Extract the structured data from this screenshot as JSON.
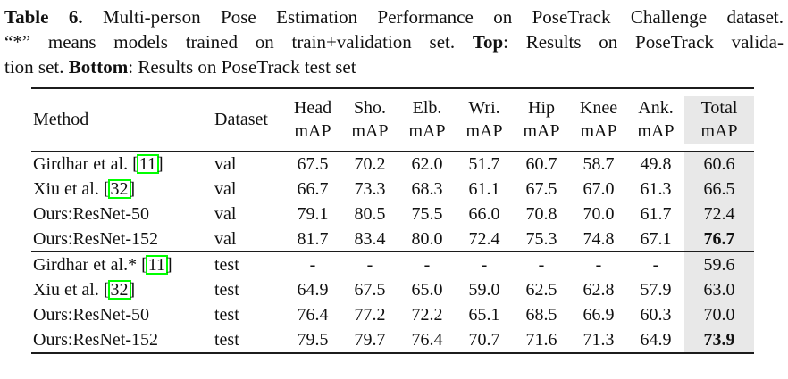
{
  "caption": {
    "line1": {
      "bold": "Table 6.",
      "rest": " Multi-person Pose Estimation Performance on PoseTrack Challenge dataset."
    },
    "line2": {
      "pre": "“*” means models trained on train+validation set. ",
      "bold": "Top",
      "rest": ": Results on PoseTrack valida-"
    },
    "line3": {
      "pre": "tion set. ",
      "bold": "Bottom",
      "rest": ": Results on PoseTrack test set"
    }
  },
  "table": {
    "header": {
      "method": "Method",
      "dataset": "Dataset",
      "metrics": [
        {
          "line1": "Head",
          "line2": "mAP",
          "shaded": false
        },
        {
          "line1": "Sho.",
          "line2": "mAP",
          "shaded": false
        },
        {
          "line1": "Elb.",
          "line2": "mAP",
          "shaded": false
        },
        {
          "line1": "Wri.",
          "line2": "mAP",
          "shaded": false
        },
        {
          "line1": "Hip",
          "line2": "mAP",
          "shaded": false
        },
        {
          "line1": "Knee",
          "line2": "mAP",
          "shaded": false
        },
        {
          "line1": "Ank.",
          "line2": "mAP",
          "shaded": false
        },
        {
          "line1": "Total",
          "line2": "mAP",
          "shaded": true
        }
      ]
    },
    "sections": [
      {
        "name": "validation",
        "rows": [
          {
            "method": "Girdhar et al.",
            "citation": "11",
            "dataset": "val",
            "values": [
              "67.5",
              "70.2",
              "62.0",
              "51.7",
              "60.7",
              "58.7",
              "49.8"
            ],
            "total": "60.6",
            "total_bold": false
          },
          {
            "method": "Xiu et al.",
            "citation": "32",
            "dataset": "val",
            "values": [
              "66.7",
              "73.3",
              "68.3",
              "61.1",
              "67.5",
              "67.0",
              "61.3"
            ],
            "total": "66.5",
            "total_bold": false
          },
          {
            "method": "Ours:ResNet-50",
            "citation": null,
            "dataset": "val",
            "values": [
              "79.1",
              "80.5",
              "75.5",
              "66.0",
              "70.8",
              "70.0",
              "61.7"
            ],
            "total": "72.4",
            "total_bold": false
          },
          {
            "method": "Ours:ResNet-152",
            "citation": null,
            "dataset": "val",
            "values": [
              "81.7",
              "83.4",
              "80.0",
              "72.4",
              "75.3",
              "74.8",
              "67.1"
            ],
            "total": "76.7",
            "total_bold": true
          }
        ]
      },
      {
        "name": "test",
        "rows": [
          {
            "method": "Girdhar et al.*",
            "citation": "11",
            "dataset": "test",
            "values": [
              "-",
              "-",
              "-",
              "-",
              "-",
              "-",
              "-"
            ],
            "total": "59.6",
            "total_bold": false
          },
          {
            "method": "Xiu et al.",
            "citation": "32",
            "dataset": "test",
            "values": [
              "64.9",
              "67.5",
              "65.0",
              "59.0",
              "62.5",
              "62.8",
              "57.9"
            ],
            "total": "63.0",
            "total_bold": false
          },
          {
            "method": "Ours:ResNet-50",
            "citation": null,
            "dataset": "test",
            "values": [
              "76.4",
              "77.2",
              "72.2",
              "65.1",
              "68.5",
              "66.9",
              "60.3"
            ],
            "total": "70.0",
            "total_bold": false
          },
          {
            "method": "Ours:ResNet-152",
            "citation": null,
            "dataset": "test",
            "values": [
              "79.5",
              "79.7",
              "76.4",
              "70.7",
              "71.6",
              "71.3",
              "64.9"
            ],
            "total": "73.9",
            "total_bold": true
          }
        ]
      }
    ]
  },
  "colors": {
    "citation_box": "#00ff00",
    "shaded_column": "#e8e8e8",
    "rule": "#1c1c1c"
  }
}
